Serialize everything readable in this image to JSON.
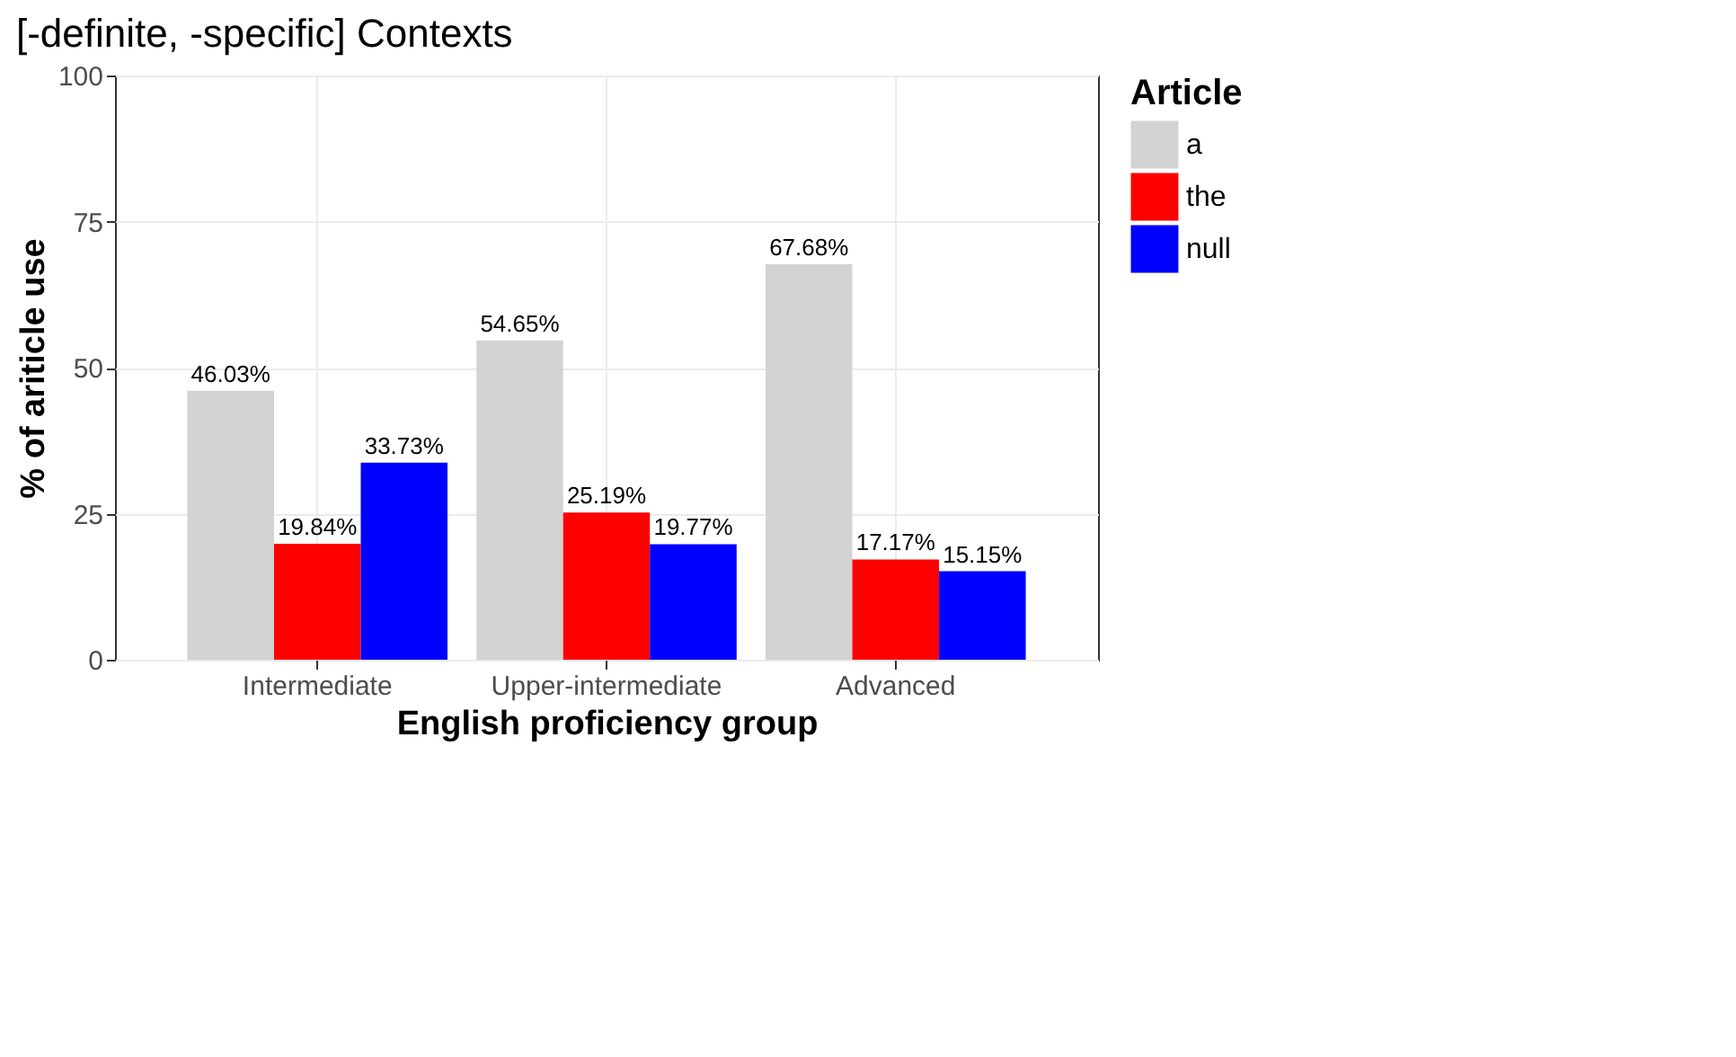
{
  "chart_data": {
    "type": "bar",
    "title": "[-definite, -specific] Contexts",
    "xlabel": "English proficiency group",
    "ylabel": "% of ariticle use",
    "legend_title": "Article",
    "categories": [
      "Intermediate",
      "Upper-intermediate",
      "Advanced"
    ],
    "series": [
      {
        "name": "a",
        "color": "#d3d3d3",
        "values": [
          46.03,
          54.65,
          67.68
        ],
        "value_labels": [
          "46.03%",
          "54.65%",
          "67.68%"
        ]
      },
      {
        "name": "the",
        "color": "#ff0000",
        "values": [
          19.84,
          25.19,
          17.17
        ],
        "value_labels": [
          "19.84%",
          "25.19%",
          "17.17%"
        ]
      },
      {
        "name": "null",
        "color": "#0000ff",
        "values": [
          33.73,
          19.77,
          15.15
        ],
        "value_labels": [
          "33.73%",
          "19.77%",
          "15.15%"
        ]
      }
    ],
    "ylim": [
      0,
      100
    ],
    "yticks": [
      0,
      25,
      50,
      75,
      100
    ],
    "grid": true,
    "legend": "right"
  }
}
